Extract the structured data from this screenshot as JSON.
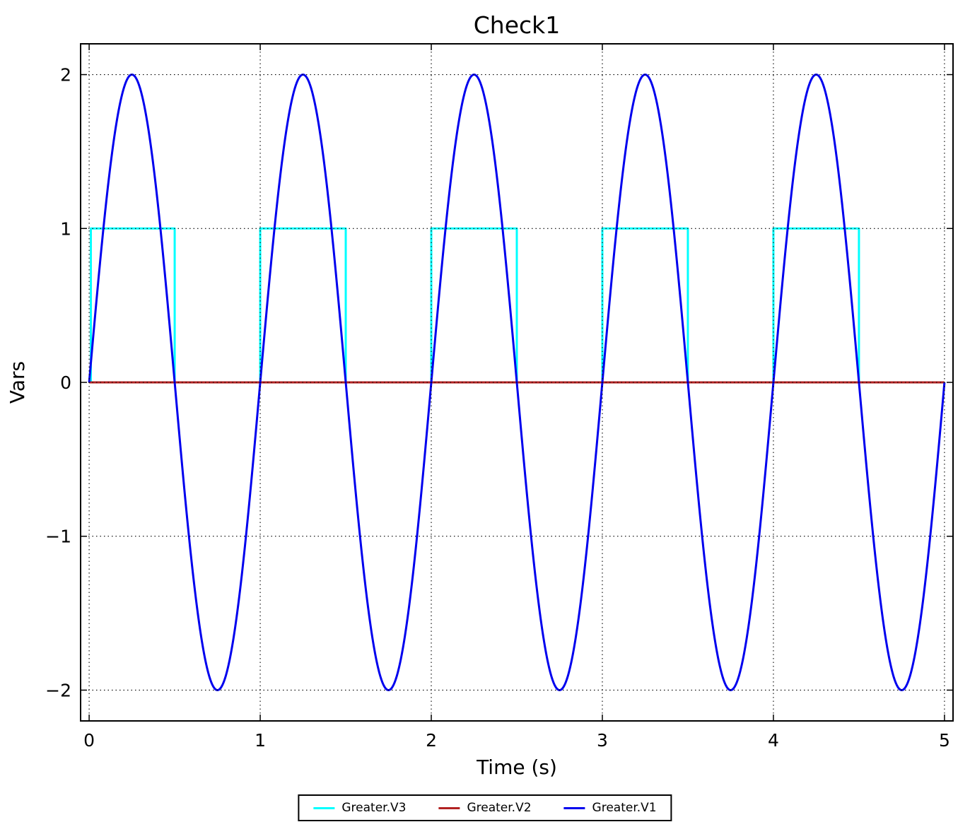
{
  "chart_data": {
    "type": "line",
    "title": "Check1",
    "xlabel": "Time (s)",
    "ylabel": "Vars",
    "xlim": [
      -0.05,
      5.05
    ],
    "ylim": [
      -2.2,
      2.2
    ],
    "grid": "dotted",
    "grid_on_top": true,
    "tick_direction": "in",
    "legend_position": "bottom-center",
    "xticks": {
      "values": [
        0,
        1,
        2,
        3,
        4,
        5
      ],
      "labels": [
        "0",
        "1",
        "2",
        "3",
        "4",
        "5"
      ]
    },
    "yticks": {
      "values": [
        -2,
        -1,
        0,
        1,
        2
      ],
      "labels": [
        "−2",
        "−1",
        "0",
        "1",
        "2"
      ]
    },
    "series": [
      {
        "name": "Greater.V3",
        "color": "#00ffff",
        "width": 3,
        "points": [
          [
            0,
            0
          ],
          [
            0.01,
            0
          ],
          [
            0.01,
            1
          ],
          [
            0.5,
            1
          ],
          [
            0.5,
            0
          ],
          [
            1,
            0
          ],
          [
            1,
            1
          ],
          [
            1.5,
            1
          ],
          [
            1.5,
            0
          ],
          [
            2,
            0
          ],
          [
            2,
            1
          ],
          [
            2.5,
            1
          ],
          [
            2.5,
            0
          ],
          [
            3,
            0
          ],
          [
            3,
            1
          ],
          [
            3.5,
            1
          ],
          [
            3.5,
            0
          ],
          [
            4,
            0
          ],
          [
            4,
            1
          ],
          [
            4.5,
            1
          ],
          [
            4.5,
            0
          ],
          [
            5,
            0
          ]
        ]
      },
      {
        "name": "Greater.V2",
        "color": "#b22222",
        "width": 3,
        "points": [
          [
            0,
            0
          ],
          [
            5,
            0
          ]
        ]
      },
      {
        "name": "Greater.V1",
        "color": "#0000ee",
        "width": 3,
        "gen": {
          "kind": "sine",
          "amplitude": 2,
          "frequency_hz": 1,
          "phase": 0,
          "t0": 0,
          "t1": 5,
          "samples": 1200
        }
      }
    ],
    "legend": [
      {
        "label": "Greater.V3",
        "color": "#00ffff"
      },
      {
        "label": "Greater.V2",
        "color": "#b22222"
      },
      {
        "label": "Greater.V1",
        "color": "#0000ee"
      }
    ]
  },
  "colors": {
    "axes": "#000000",
    "grid": "#000000",
    "background": "#ffffff"
  }
}
